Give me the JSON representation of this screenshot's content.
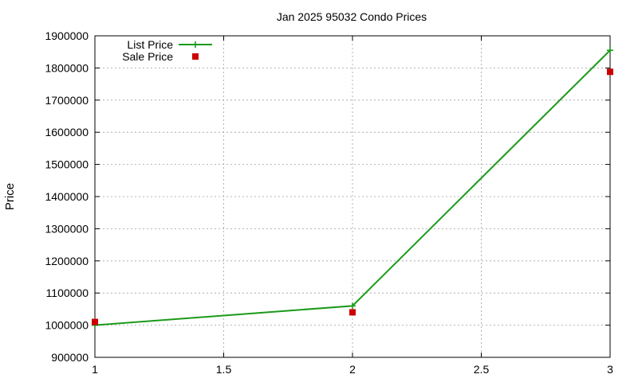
{
  "chart_data": {
    "type": "line",
    "title": "Jan 2025 95032 Condo Prices",
    "xlabel": "",
    "ylabel": "Price",
    "xlim": [
      1,
      3
    ],
    "ylim": [
      900000,
      1900000
    ],
    "x_ticks": [
      "1",
      "1.5",
      "2",
      "2.5",
      "3"
    ],
    "y_ticks": [
      "900000",
      "1000000",
      "1100000",
      "1200000",
      "1300000",
      "1400000",
      "1500000",
      "1600000",
      "1700000",
      "1800000",
      "1900000"
    ],
    "grid": true,
    "legend_position": "top-left",
    "series": [
      {
        "name": "List Price",
        "style": "line-with-plus-markers",
        "color": "#1a9a1a",
        "points": [
          {
            "x": 1,
            "y": 1000000
          },
          {
            "x": 2,
            "y": 1060000
          },
          {
            "x": 3,
            "y": 1855000
          }
        ]
      },
      {
        "name": "Sale Price",
        "style": "square-markers",
        "color": "#cc0000",
        "points": [
          {
            "x": 1,
            "y": 1010000
          },
          {
            "x": 2,
            "y": 1040000
          },
          {
            "x": 3,
            "y": 1788000
          }
        ]
      }
    ]
  }
}
